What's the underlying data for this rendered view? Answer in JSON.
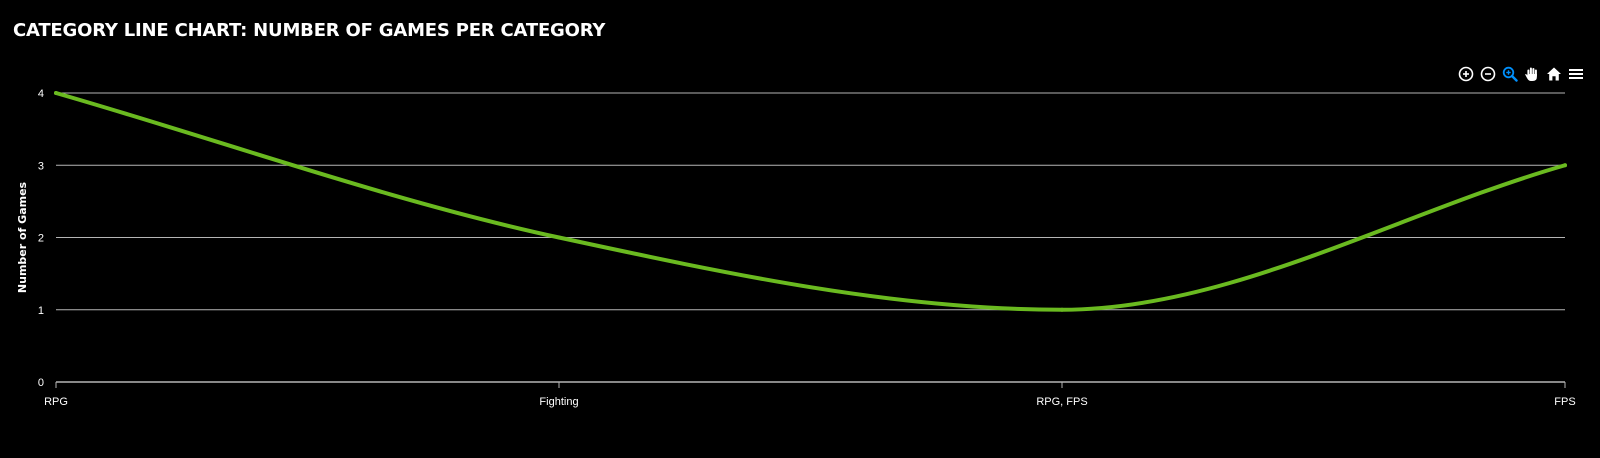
{
  "title": "CATEGORY LINE CHART: NUMBER OF GAMES PER CATEGORY",
  "toolbar": {
    "icons": [
      "zoom-in-icon",
      "zoom-out-icon",
      "selection-zoom-icon",
      "pan-hand-icon",
      "home-reset-icon",
      "menu-icon"
    ],
    "active_color": "#008ffb",
    "icon_color": "#ffffff"
  },
  "colors": {
    "background": "#000000",
    "line": "#6aba20",
    "grid": "#b5b5b5",
    "text": "#ffffff"
  },
  "chart_data": {
    "type": "line",
    "curve": "smooth",
    "categories": [
      "RPG",
      "Fighting",
      "RPG, FPS",
      "FPS"
    ],
    "series": [
      {
        "values": [
          4,
          2,
          1,
          3
        ]
      }
    ],
    "xlabel": "",
    "ylabel": "Number of Games",
    "ylim": [
      0,
      4
    ],
    "yticks": [
      "0",
      "1",
      "2",
      "3",
      "4"
    ],
    "grid": true,
    "legend": "none"
  }
}
